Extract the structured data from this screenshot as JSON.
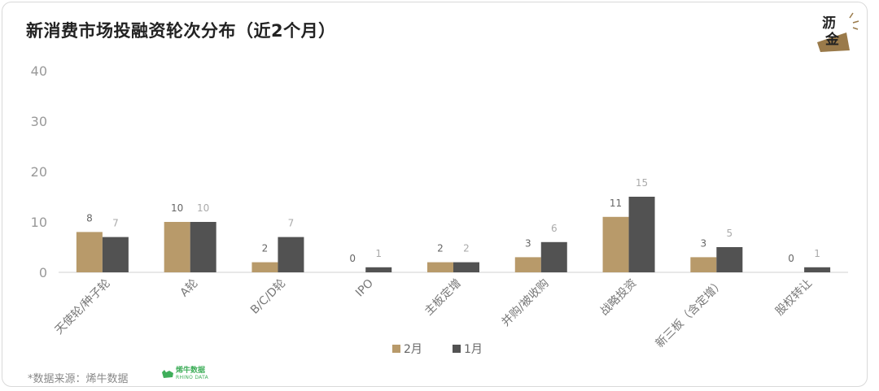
{
  "header": {
    "title": "新消费市场投融资轮次分布（近2个月）",
    "logo_text_top": "沥",
    "logo_text_bottom": "金"
  },
  "footer": {
    "source": "*数据来源：烯牛数据",
    "source_logo_main": "烯牛数据",
    "source_logo_sub": "RHINO DATA"
  },
  "colors": {
    "feb": "#b89a6a",
    "jan": "#525252",
    "feb_label": "#666666",
    "jan_label": "#aaaaaa",
    "logo": "#9a7a4a"
  },
  "chart_data": {
    "type": "bar",
    "categories": [
      "天使轮/种子轮",
      "A轮",
      "B/C/D轮",
      "IPO",
      "主板定增",
      "并购/被收购",
      "战略投资",
      "新三板（含定增）",
      "股权转让"
    ],
    "series": [
      {
        "name": "2月",
        "values": [
          8,
          10,
          2,
          0,
          2,
          3,
          11,
          3,
          0
        ]
      },
      {
        "name": "1月",
        "values": [
          7,
          10,
          7,
          1,
          2,
          6,
          15,
          5,
          1
        ]
      }
    ],
    "yticks": [
      "0",
      "10",
      "20",
      "30",
      "40"
    ],
    "ylim": [
      0,
      40
    ],
    "grid": false,
    "legend_position": "bottom-center",
    "title": "新消费市场投融资轮次分布（近2个月）",
    "xlabel": "",
    "ylabel": ""
  }
}
